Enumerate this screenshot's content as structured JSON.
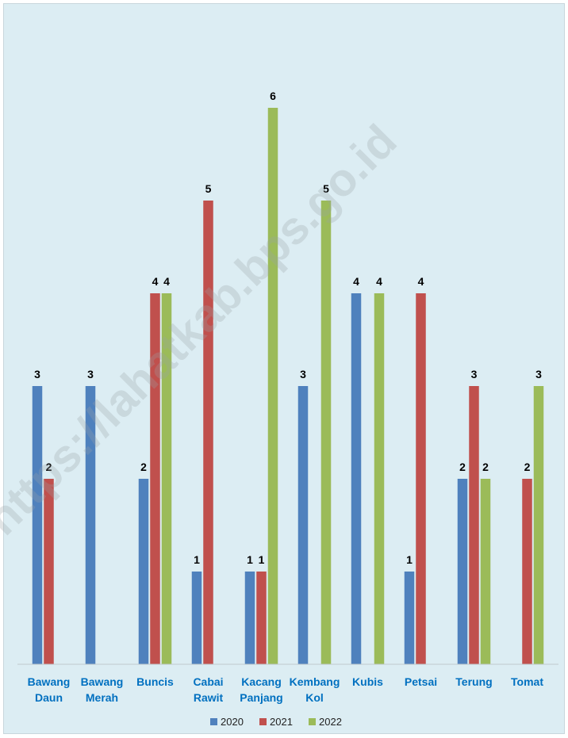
{
  "chart_data": {
    "type": "bar",
    "categories": [
      [
        "Bawang",
        "Daun"
      ],
      [
        "Bawang",
        "Merah"
      ],
      [
        "Buncis"
      ],
      [
        "Cabai",
        "Rawit"
      ],
      [
        "Kacang",
        "Panjang"
      ],
      [
        "Kembang",
        "Kol"
      ],
      [
        "Kubis"
      ],
      [
        "Petsai"
      ],
      [
        "Terung"
      ],
      [
        "Tomat"
      ]
    ],
    "series": [
      {
        "name": "2020",
        "color": "#4f81bd",
        "values": [
          3,
          3,
          2,
          1,
          1,
          3,
          4,
          1,
          2,
          null
        ]
      },
      {
        "name": "2021",
        "color": "#c0504d",
        "values": [
          2,
          null,
          4,
          5,
          1,
          null,
          null,
          4,
          3,
          2
        ]
      },
      {
        "name": "2022",
        "color": "#9bbb59",
        "values": [
          null,
          null,
          4,
          null,
          6,
          5,
          4,
          null,
          2,
          3
        ]
      }
    ],
    "ylim": [
      0,
      6.5
    ],
    "grid": false,
    "legend_position": "bottom",
    "category_label_color": "#0070c0",
    "background_color": "#dcedf3"
  },
  "watermark": "https://lahatkab.bps.go.id"
}
